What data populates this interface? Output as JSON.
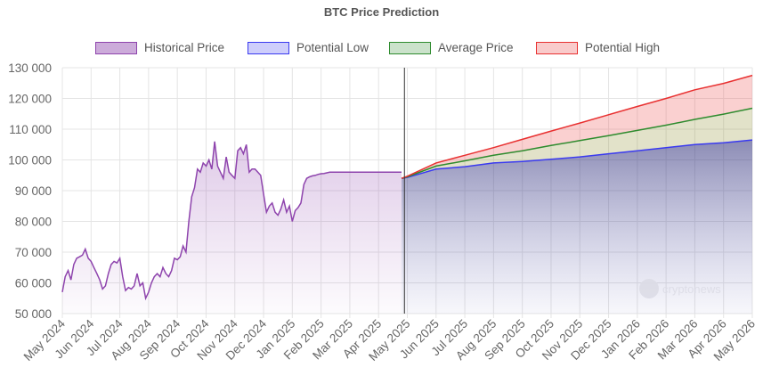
{
  "chart_data": {
    "type": "area",
    "title": "BTC Price Prediction",
    "xlabel": "",
    "ylabel": "",
    "ylim": [
      50000,
      130000
    ],
    "y_ticks": [
      "50 000",
      "60 000",
      "70 000",
      "80 000",
      "90 000",
      "100 000",
      "110 000",
      "120 000",
      "130 000"
    ],
    "y_tick_values": [
      50000,
      60000,
      70000,
      80000,
      90000,
      100000,
      110000,
      120000,
      130000
    ],
    "x_ticks": [
      "May 2024",
      "Jun 2024",
      "Jul 2024",
      "Aug 2024",
      "Sep 2024",
      "Oct 2024",
      "Nov 2024",
      "Dec 2024",
      "Jan 2025",
      "Feb 2025",
      "Mar 2025",
      "Apr 2025",
      "May 2025",
      "Jun 2025",
      "Jul 2025",
      "Aug 2025",
      "Sep 2025",
      "Oct 2025",
      "Nov 2025",
      "Dec 2025",
      "Jan 2026",
      "Feb 2026",
      "Mar 2026",
      "Apr 2026",
      "May 2026"
    ],
    "divider_at": "May 2025",
    "grid": true,
    "legend_position": "top",
    "series": [
      {
        "name": "Historical Price",
        "color": "#8e44ad",
        "x": [
          0,
          0.1,
          0.2,
          0.3,
          0.4,
          0.5,
          0.6,
          0.7,
          0.8,
          0.9,
          1.0,
          1.1,
          1.2,
          1.3,
          1.4,
          1.5,
          1.6,
          1.7,
          1.8,
          1.9,
          2.0,
          2.1,
          2.2,
          2.3,
          2.4,
          2.5,
          2.6,
          2.7,
          2.8,
          2.9,
          3.0,
          3.1,
          3.2,
          3.3,
          3.4,
          3.5,
          3.6,
          3.7,
          3.8,
          3.9,
          4.0,
          4.1,
          4.2,
          4.3,
          4.4,
          4.5,
          4.6,
          4.7,
          4.8,
          4.9,
          5.0,
          5.1,
          5.2,
          5.3,
          5.4,
          5.5,
          5.6,
          5.7,
          5.8,
          5.9,
          6.0,
          6.1,
          6.2,
          6.3,
          6.4,
          6.5,
          6.6,
          6.7,
          6.8,
          6.9,
          7.0,
          7.1,
          7.2,
          7.3,
          7.4,
          7.5,
          7.6,
          7.7,
          7.8,
          7.9,
          8.0,
          8.1,
          8.2,
          8.3,
          8.4,
          8.5,
          8.6,
          8.7,
          8.8,
          8.9,
          9.0,
          9.1,
          9.2,
          9.3,
          9.4,
          9.5,
          9.6,
          9.7,
          9.8,
          9.9,
          10.0,
          10.1,
          10.2,
          10.3,
          10.4,
          10.5,
          10.6,
          10.7,
          10.8,
          10.9,
          11.0,
          11.1,
          11.2,
          11.3,
          11.4,
          11.5,
          11.6,
          11.7,
          11.8,
          11.9,
          12.0
        ],
        "values": [
          57000,
          62000,
          64000,
          61000,
          66000,
          68000,
          68500,
          69000,
          71000,
          68000,
          67000,
          65000,
          63000,
          61000,
          58000,
          59000,
          63000,
          66000,
          67000,
          66500,
          68000,
          62000,
          57500,
          58500,
          58000,
          59000,
          63000,
          59000,
          60000,
          55000,
          57000,
          60000,
          62000,
          63000,
          62000,
          65000,
          63000,
          62000,
          64000,
          68000,
          67500,
          68500,
          72000,
          70000,
          80000,
          88000,
          91000,
          97000,
          96000,
          99000,
          98000,
          100000,
          97000,
          106000,
          98000,
          96000,
          94000,
          101000,
          96000,
          95000,
          94000,
          103000,
          104000,
          102000,
          105000,
          96000,
          97000,
          97000,
          96000,
          95000,
          89000,
          83000,
          85000,
          86000,
          83000,
          82000,
          84000,
          87000,
          83000,
          85000,
          80000,
          83500,
          84500,
          86000,
          92000,
          94000,
          94500,
          94800,
          95000,
          95300,
          95500,
          95600,
          95800,
          96000,
          96000,
          96000,
          96000,
          96000,
          96000,
          96000,
          96000,
          96000,
          96000,
          96000,
          96000,
          96000,
          96000,
          96000,
          96000,
          96000,
          96000,
          96000,
          96000,
          96000,
          96000,
          96000,
          96000,
          96000,
          96000,
          96000,
          96000
        ]
      },
      {
        "name": "Potential Low",
        "color": "#3a3af0",
        "x": [
          11.8,
          12,
          13,
          14,
          15,
          16,
          17,
          18,
          19,
          20,
          21,
          22,
          23,
          24
        ],
        "values": [
          94000,
          94300,
          97000,
          97800,
          99000,
          99500,
          100200,
          101000,
          102000,
          103000,
          104000,
          105000,
          105600,
          106500
        ]
      },
      {
        "name": "Average Price",
        "color": "#2e8b2e",
        "x": [
          11.8,
          12,
          13,
          14,
          15,
          16,
          17,
          18,
          19,
          20,
          21,
          22,
          23,
          24
        ],
        "values": [
          94000,
          94500,
          98000,
          99700,
          101500,
          103000,
          104700,
          106300,
          107900,
          109600,
          111300,
          113200,
          114900,
          116800
        ]
      },
      {
        "name": "Potential High",
        "color": "#e83030",
        "x": [
          11.8,
          12,
          13,
          14,
          15,
          16,
          17,
          18,
          19,
          20,
          21,
          22,
          23,
          24
        ],
        "values": [
          94000,
          94700,
          99000,
          101500,
          104000,
          106700,
          109400,
          112000,
          114700,
          117400,
          120000,
          122800,
          124900,
          127500
        ]
      }
    ],
    "legend": [
      {
        "label": "Historical Price",
        "fill": "rgba(142,68,173,0.45)",
        "stroke": "#8e44ad"
      },
      {
        "label": "Potential Low",
        "fill": "rgba(58,58,240,0.25)",
        "stroke": "#3a3af0"
      },
      {
        "label": "Average Price",
        "fill": "rgba(46,139,46,0.25)",
        "stroke": "#2e8b2e"
      },
      {
        "label": "Potential High",
        "fill": "rgba(232,48,48,0.25)",
        "stroke": "#e83030"
      }
    ],
    "watermark": "cryptonews"
  }
}
